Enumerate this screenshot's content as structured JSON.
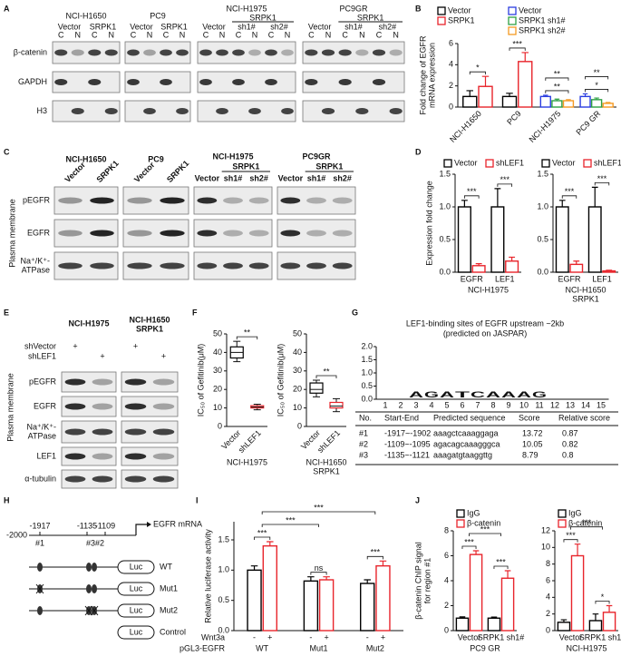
{
  "panel_labels": [
    "A",
    "B",
    "C",
    "D",
    "E",
    "F",
    "G",
    "H",
    "I",
    "J"
  ],
  "blot_a": {
    "groups": [
      {
        "title": "NCI-H1650",
        "conditions": [
          "Vector",
          "SRPK1"
        ]
      },
      {
        "title": "PC9",
        "conditions": [
          "Vector",
          "SRPK1"
        ]
      },
      {
        "title": "NCI-H1975",
        "subtitle": "SRPK1",
        "conditions": [
          "Vector",
          "sh1#",
          "sh2#"
        ]
      },
      {
        "title": "PC9GR",
        "subtitle": "SRPK1",
        "conditions": [
          "Vector",
          "sh1#",
          "sh2#"
        ]
      }
    ],
    "fractions": [
      "C",
      "N"
    ],
    "rows": [
      "β-catenin",
      "GAPDH",
      "H3"
    ]
  },
  "blot_c": {
    "groups": [
      {
        "title": "NCI-H1650",
        "conditions": [
          "Vector",
          "SRPK1"
        ]
      },
      {
        "title": "PC9",
        "conditions": [
          "Vector",
          "SRPK1"
        ]
      },
      {
        "title": "NCI-H1975",
        "subtitle": "SRPK1",
        "conditions": [
          "Vector",
          "sh1#",
          "sh2#"
        ]
      },
      {
        "title": "PC9GR",
        "subtitle": "SRPK1",
        "conditions": [
          "Vector",
          "sh1#",
          "sh2#"
        ]
      }
    ],
    "rows": [
      [
        "pEGFR"
      ],
      [
        "EGFR"
      ],
      [
        "Na⁺/K⁺-",
        "ATPase"
      ]
    ],
    "side_label": "Plasma membrane"
  },
  "blot_e": {
    "groups": [
      [
        "NCI-H1975"
      ],
      [
        "NCI-H1650",
        "SRPK1"
      ]
    ],
    "conditions": [
      "shVector",
      "shLEF1"
    ],
    "sign": "+",
    "rows": [
      [
        "pEGFR"
      ],
      [
        "EGFR"
      ],
      [
        "Na⁺/K⁺-",
        "ATPase"
      ],
      [
        "LEF1"
      ],
      [
        "α-tubulin"
      ]
    ],
    "side_label": "Plasma membrane"
  },
  "motif": {
    "title": [
      "LEF1-binding sites of EGFR upstream ~2kb",
      "(predicted on JASPAR)"
    ],
    "logo": {
      "letters": [
        "A",
        "G",
        "A",
        "T",
        "C",
        "A",
        "A",
        "A",
        "G"
      ],
      "colors": {
        "A": "#2e9e47",
        "G": "#f2a31b",
        "T": "#e0262b",
        "C": "#2457c5"
      },
      "yticks": [
        {
          "value": 0,
          "label": "0.0"
        },
        {
          "value": 0.5,
          "label": "0.5"
        },
        {
          "value": 1,
          "label": "1.0"
        },
        {
          "value": 1.5,
          "label": "1.5"
        },
        {
          "value": 2,
          "label": "2.0"
        }
      ],
      "xticks": [
        1,
        2,
        3,
        4,
        5,
        6,
        7,
        8,
        9,
        10,
        11,
        12,
        13,
        14,
        15
      ]
    },
    "table": {
      "header": [
        "No.",
        "Start-End",
        "Predicted sequence",
        "Score",
        "Relative score"
      ],
      "rows": [
        [
          "#1",
          "-1917~-1902",
          "aaagctcaaaggaga",
          13.72,
          0.87
        ],
        [
          "#2",
          "-1109~-1095",
          "agacagcaaagggca",
          10.05,
          0.82
        ],
        [
          "#3",
          "-1135~-1121",
          "aaagatgtaaggttg",
          8.79,
          0.8
        ]
      ]
    }
  },
  "construct": {
    "positions": [
      -2000,
      -1917,
      -1135,
      -1109
    ],
    "sites": [
      "#1",
      "#3",
      "#2"
    ],
    "gene": "EGFR mRNA",
    "reporter": "Luc",
    "constructs": [
      "WT",
      "Mut1",
      "Mut2",
      "Control"
    ]
  },
  "chart_data": [
    {
      "type": "bar",
      "ylabel": [
        "Fold change of EGFR",
        "mRNA expression"
      ],
      "categories": [
        "NCI-H1650",
        "PC9",
        "NCI-H1975",
        "PC9 GR"
      ],
      "rotate_labels": true,
      "legend": "top",
      "series": [
        {
          "name": "Vector",
          "color": "#000000",
          "values": [
            1,
            1,
            null,
            null
          ],
          "errors": [
            0.55,
            0.3,
            null,
            null
          ]
        },
        {
          "name": "SRPK1",
          "color": "#e8242b",
          "values": [
            1.95,
            4.3,
            null,
            null
          ],
          "errors": [
            0.95,
            0.85,
            null,
            null
          ]
        },
        {
          "name": "Vector",
          "color": "#2b3de0",
          "values": [
            null,
            null,
            1,
            1
          ],
          "errors": [
            null,
            null,
            0.12,
            0.25
          ]
        },
        {
          "name": "SRPK1 sh1#",
          "color": "#2ea043",
          "values": [
            null,
            null,
            0.6,
            0.7
          ],
          "errors": [
            null,
            null,
            0.15,
            0.15
          ]
        },
        {
          "name": "SRPK1 sh2#",
          "color": "#f59a23",
          "values": [
            null,
            null,
            0.6,
            0.35
          ],
          "errors": [
            null,
            null,
            0.1,
            0.08
          ]
        }
      ],
      "ylim": [
        0,
        6
      ],
      "yticks": [
        0,
        2,
        4,
        6
      ],
      "annotations": [
        {
          "text": "*",
          "categories": [
            0
          ]
        },
        {
          "text": "***",
          "categories": [
            1
          ]
        },
        {
          "text": "**",
          "categories": [
            2
          ]
        },
        {
          "text": "**",
          "categories": [
            2
          ]
        },
        {
          "text": "*",
          "categories": [
            3
          ]
        },
        {
          "text": "**",
          "categories": [
            3
          ]
        }
      ]
    },
    {
      "type": "bar",
      "ylabel": [
        "Expression fold change"
      ],
      "categories": [
        "EGFR",
        "LEF1"
      ],
      "group_label": [
        "NCI-H1975"
      ],
      "legend": "top",
      "series": [
        {
          "name": "Vector",
          "color": "#000000",
          "values": [
            1,
            1
          ],
          "errors": [
            0.1,
            0.28
          ]
        },
        {
          "name": "shLEF1",
          "color": "#e8242b",
          "values": [
            0.1,
            0.17
          ],
          "errors": [
            0.03,
            0.06
          ]
        }
      ],
      "ylim": [
        0,
        1.5
      ],
      "yticks": [
        {
          "value": 0,
          "label": "0.0"
        },
        {
          "value": 0.5,
          "label": "0.5"
        },
        {
          "value": 1,
          "label": "1.0"
        },
        {
          "value": 1.5,
          "label": "1.5"
        }
      ],
      "annotations": [
        {
          "text": "***",
          "categories": [
            0
          ]
        },
        {
          "text": "***",
          "categories": [
            1
          ]
        }
      ]
    },
    {
      "type": "bar",
      "categories": [
        "EGFR",
        "LEF1"
      ],
      "group_label": [
        "NCI-H1650",
        "SRPK1"
      ],
      "legend": "top",
      "series": [
        {
          "name": "Vector",
          "color": "#000000",
          "values": [
            1,
            1
          ],
          "errors": [
            0.1,
            0.3
          ]
        },
        {
          "name": "shLEF1",
          "color": "#e8242b",
          "values": [
            0.12,
            0.02
          ],
          "errors": [
            0.05,
            0.01
          ]
        }
      ],
      "ylim": [
        0,
        1.5
      ],
      "yticks": [
        {
          "value": 0,
          "label": "0.0"
        },
        {
          "value": 0.5,
          "label": "0.5"
        },
        {
          "value": 1,
          "label": "1.0"
        },
        {
          "value": 1.5,
          "label": "1.5"
        }
      ],
      "annotations": [
        {
          "text": "***",
          "categories": [
            0
          ]
        },
        {
          "text": "***",
          "categories": [
            1
          ]
        }
      ]
    },
    {
      "type": "box",
      "ylabel": [
        "IC₅₀ of Gefitinib(μM)"
      ],
      "categories": [
        "Vector",
        "shLEF1"
      ],
      "rotate_labels": true,
      "group_label": [
        "NCI-H1975"
      ],
      "boxes": [
        {
          "color": "#000000",
          "min": 35,
          "q1": 37,
          "median": 40,
          "q3": 43,
          "max": 46
        },
        {
          "color": "#e8242b",
          "min": 9,
          "q1": 10,
          "median": 10.5,
          "q3": 11.2,
          "max": 12
        }
      ],
      "ylim": [
        0,
        50
      ],
      "yticks": [
        0,
        10,
        20,
        30,
        40,
        50
      ],
      "annotations": [
        {
          "text": "**",
          "categories": [
            0,
            1
          ]
        }
      ]
    },
    {
      "type": "box",
      "ylabel": [
        "IC₅₀ of Gefitinib(μM)"
      ],
      "categories": [
        "Vector",
        "shLEF1"
      ],
      "rotate_labels": true,
      "group_label": [
        "NCI-H1650",
        "SRPK1"
      ],
      "boxes": [
        {
          "color": "#000000",
          "min": 16,
          "q1": 18,
          "median": 20,
          "q3": 23.5,
          "max": 25
        },
        {
          "color": "#e8242b",
          "min": 8,
          "q1": 10,
          "median": 11,
          "q3": 13,
          "max": 15
        }
      ],
      "ylim": [
        0,
        50
      ],
      "yticks": [
        0,
        10,
        20,
        30,
        40,
        50
      ],
      "annotations": [
        {
          "text": "**",
          "categories": [
            0,
            1
          ]
        }
      ]
    },
    {
      "type": "bar",
      "ylabel": [
        "Relative luciferase activity"
      ],
      "categories": [
        "WT",
        "Mut1",
        "Mut2"
      ],
      "series_labels_below": true,
      "row_labels": [
        "Wnt3a",
        "pGL3-EGFR"
      ],
      "series": [
        {
          "name": "-",
          "color": "#000000",
          "values": [
            1,
            0.82,
            0.78
          ],
          "errors": [
            0.07,
            0.07,
            0.06
          ]
        },
        {
          "name": "+",
          "color": "#e8242b",
          "values": [
            1.4,
            0.84,
            1.07
          ],
          "errors": [
            0.07,
            0.05,
            0.08
          ]
        }
      ],
      "ylim": [
        0,
        1.8
      ],
      "yticks": [
        {
          "value": 0,
          "label": "0.0"
        },
        {
          "value": 0.5,
          "label": "0.5"
        },
        {
          "value": 1,
          "label": "1.0"
        },
        {
          "value": 1.5,
          "label": "1.5"
        }
      ],
      "annotations": [
        {
          "text": "***",
          "categories": [
            0
          ]
        },
        {
          "text": "ns",
          "categories": [
            1
          ]
        },
        {
          "text": "***",
          "categories": [
            2
          ]
        },
        {
          "text": "***",
          "categories": [
            0,
            1
          ]
        },
        {
          "text": "***",
          "categories": [
            0,
            2
          ]
        }
      ]
    },
    {
      "type": "bar",
      "ylabel": [
        "β-catenin ChIP signal",
        "for region #1"
      ],
      "categories": [
        "Vector",
        "SRPK1 sh1#"
      ],
      "group_label": [
        "PC9 GR"
      ],
      "legend": "upper left",
      "series": [
        {
          "name": "IgG",
          "color": "#000000",
          "values": [
            1,
            1
          ],
          "errors": [
            0.1,
            0.08
          ]
        },
        {
          "name": "β-catenin",
          "color": "#e8242b",
          "values": [
            6.1,
            4.2
          ],
          "errors": [
            0.3,
            0.6
          ]
        }
      ],
      "ylim": [
        0,
        8
      ],
      "yticks": [
        0,
        2,
        4,
        6,
        8
      ],
      "annotations": [
        {
          "text": "***",
          "categories": [
            0
          ]
        },
        {
          "text": "***",
          "categories": [
            1
          ]
        },
        {
          "text": "***",
          "categories": [
            0,
            1
          ]
        }
      ]
    },
    {
      "type": "bar",
      "categories": [
        "Vector",
        "SRPK1 sh1#"
      ],
      "group_label": [
        "NCI-H1975"
      ],
      "legend": "upper left",
      "series": [
        {
          "name": "IgG",
          "color": "#000000",
          "values": [
            1,
            1.2
          ],
          "errors": [
            0.3,
            0.8
          ]
        },
        {
          "name": "β-catenin",
          "color": "#e8242b",
          "values": [
            9,
            2.2
          ],
          "errors": [
            1.4,
            0.8
          ]
        }
      ],
      "ylim": [
        0,
        12
      ],
      "yticks": [
        0,
        2,
        4,
        6,
        8,
        10,
        12
      ],
      "annotations": [
        {
          "text": "***",
          "categories": [
            0
          ]
        },
        {
          "text": "*",
          "categories": [
            1
          ]
        },
        {
          "text": "***",
          "categories": [
            0,
            1
          ]
        }
      ]
    }
  ]
}
